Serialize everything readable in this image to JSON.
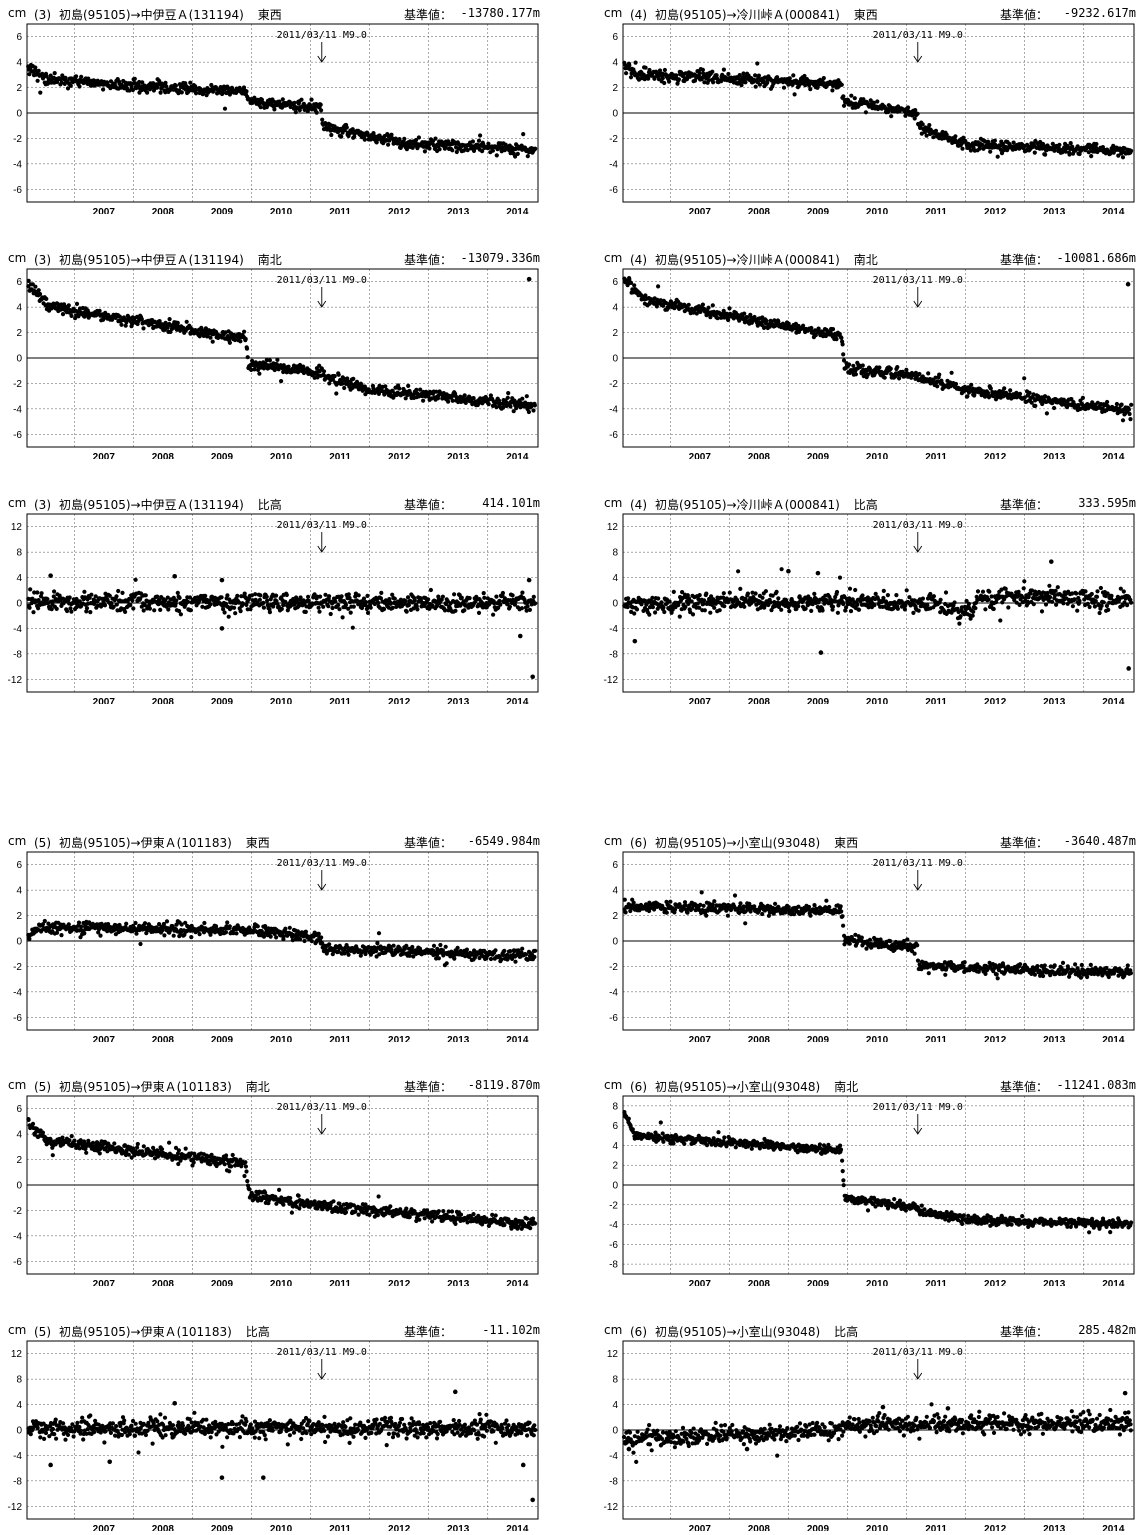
{
  "common": {
    "unit": "cm",
    "baseline_label": "基準値：",
    "event_label": "2011/03/11 M9.0",
    "event_x": 2011.19,
    "x_ticks": [
      "2007",
      "2008",
      "2009",
      "2010",
      "2011",
      "2012",
      "2013",
      "2014"
    ],
    "x_range": [
      2006.2,
      2014.85
    ]
  },
  "chart_data": [
    {
      "type": "scatter",
      "number": "(3)",
      "route": "初島(95105)→中伊豆Ａ(131194)",
      "component": "東西",
      "baseline": "-13780.177m",
      "y_ticks": [
        6,
        4,
        2,
        0,
        -2,
        -4,
        -6
      ],
      "ylim": [
        -7,
        7
      ],
      "trend": [
        [
          2006.22,
          3.7
        ],
        [
          2006.5,
          2.7
        ],
        [
          2008.0,
          2.1
        ],
        [
          2009.9,
          1.7
        ],
        [
          2009.95,
          0.9
        ],
        [
          2011.18,
          0.4
        ],
        [
          2011.2,
          -1.0
        ],
        [
          2012.0,
          -1.9
        ],
        [
          2012.5,
          -2.3
        ],
        [
          2014.8,
          -2.9
        ]
      ]
    },
    {
      "type": "scatter",
      "number": "(4)",
      "route": "初島(95105)→冷川峠Ａ(000841)",
      "component": "東西",
      "baseline": "-9232.617m",
      "y_ticks": [
        6,
        4,
        2,
        0,
        -2,
        -4,
        -6
      ],
      "ylim": [
        -7,
        7
      ],
      "trend": [
        [
          2006.22,
          3.8
        ],
        [
          2006.5,
          3.0
        ],
        [
          2008.5,
          2.6
        ],
        [
          2009.9,
          2.2
        ],
        [
          2009.95,
          1.0
        ],
        [
          2011.18,
          0.0
        ],
        [
          2011.2,
          -1.1
        ],
        [
          2012.0,
          -2.5
        ],
        [
          2014.8,
          -3.0
        ]
      ]
    },
    {
      "type": "scatter",
      "number": "(3)",
      "route": "初島(95105)→中伊豆Ａ(131194)",
      "component": "南北",
      "baseline": "-13079.336m",
      "y_ticks": [
        6,
        4,
        2,
        0,
        -2,
        -4,
        -6
      ],
      "ylim": [
        -7,
        7
      ],
      "trend": [
        [
          2006.22,
          5.8
        ],
        [
          2006.6,
          4.0
        ],
        [
          2009.9,
          1.5
        ],
        [
          2009.95,
          -0.5
        ],
        [
          2011.18,
          -1.2
        ],
        [
          2011.2,
          -1.3
        ],
        [
          2012.0,
          -2.5
        ],
        [
          2014.8,
          -3.8
        ]
      ],
      "outliers": [
        [
          2014.7,
          6.2
        ]
      ]
    },
    {
      "type": "scatter",
      "number": "(4)",
      "route": "初島(95105)→冷川峠Ａ(000841)",
      "component": "南北",
      "baseline": "-10081.686m",
      "y_ticks": [
        6,
        4,
        2,
        0,
        -2,
        -4,
        -6
      ],
      "ylim": [
        -7,
        7
      ],
      "trend": [
        [
          2006.22,
          6.2
        ],
        [
          2006.6,
          4.5
        ],
        [
          2009.9,
          1.7
        ],
        [
          2009.95,
          -0.8
        ],
        [
          2011.18,
          -1.4
        ],
        [
          2011.2,
          -1.6
        ],
        [
          2012.0,
          -2.5
        ],
        [
          2014.8,
          -4.2
        ]
      ],
      "outliers": [
        [
          2014.75,
          5.8
        ]
      ]
    },
    {
      "type": "scatter",
      "number": "(3)",
      "route": "初島(95105)→中伊豆Ａ(131194)",
      "component": "比高",
      "baseline": "414.101m",
      "y_ticks": [
        12,
        8,
        4,
        0,
        -4,
        -8,
        -12
      ],
      "ylim": [
        -14,
        14
      ],
      "trend": [
        [
          2006.22,
          0.2
        ],
        [
          2014.8,
          0.0
        ]
      ],
      "outliers": [
        [
          2006.6,
          4.3
        ],
        [
          2008.7,
          4.2
        ],
        [
          2009.5,
          3.6
        ],
        [
          2014.7,
          3.6
        ],
        [
          2014.76,
          -11.6
        ],
        [
          2009.5,
          -4.0
        ],
        [
          2014.55,
          -5.2
        ]
      ]
    },
    {
      "type": "scatter",
      "number": "(4)",
      "route": "初島(95105)→冷川峠Ａ(000841)",
      "component": "比高",
      "baseline": "333.595m",
      "y_ticks": [
        12,
        8,
        4,
        0,
        -4,
        -8,
        -12
      ],
      "ylim": [
        -14,
        14
      ],
      "trend": [
        [
          2006.22,
          -0.3
        ],
        [
          2008.5,
          0.3
        ],
        [
          2011.5,
          0.0
        ],
        [
          2011.9,
          -1.5
        ],
        [
          2012.1,
          -1.2
        ],
        [
          2012.2,
          1.0
        ],
        [
          2014.8,
          0.5
        ]
      ],
      "outliers": [
        [
          2009.0,
          5.0
        ],
        [
          2009.5,
          4.7
        ],
        [
          2013.45,
          6.5
        ],
        [
          2009.55,
          -7.8
        ],
        [
          2014.76,
          -10.3
        ],
        [
          2006.4,
          -6.0
        ]
      ]
    },
    {
      "type": "scatter",
      "number": "(5)",
      "route": "初島(95105)→伊東Ａ(101183)",
      "component": "東西",
      "baseline": "-6549.984m",
      "y_ticks": [
        6,
        4,
        2,
        0,
        -2,
        -4,
        -6
      ],
      "ylim": [
        -7,
        7
      ],
      "trend": [
        [
          2006.22,
          0.3
        ],
        [
          2006.4,
          1.1
        ],
        [
          2009.8,
          0.9
        ],
        [
          2011.18,
          0.3
        ],
        [
          2011.2,
          -0.6
        ],
        [
          2014.8,
          -1.2
        ]
      ]
    },
    {
      "type": "scatter",
      "number": "(6)",
      "route": "初島(95105)→小室山(93048)",
      "component": "東西",
      "baseline": "-3640.487m",
      "y_ticks": [
        6,
        4,
        2,
        0,
        -2,
        -4,
        -6
      ],
      "ylim": [
        -7,
        7
      ],
      "trend": [
        [
          2006.22,
          2.7
        ],
        [
          2009.9,
          2.4
        ],
        [
          2009.95,
          0.0
        ],
        [
          2011.18,
          -0.5
        ],
        [
          2011.2,
          -2.0
        ],
        [
          2014.8,
          -2.5
        ]
      ]
    },
    {
      "type": "scatter",
      "number": "(5)",
      "route": "初島(95105)→伊東Ａ(101183)",
      "component": "南北",
      "baseline": "-8119.870m",
      "y_ticks": [
        6,
        4,
        2,
        0,
        -2,
        -4,
        -6
      ],
      "ylim": [
        -7,
        7
      ],
      "trend": [
        [
          2006.22,
          5.0
        ],
        [
          2006.5,
          3.5
        ],
        [
          2009.9,
          1.7
        ],
        [
          2009.95,
          -0.8
        ],
        [
          2011.18,
          -1.6
        ],
        [
          2011.2,
          -1.7
        ],
        [
          2014.8,
          -3.1
        ]
      ]
    },
    {
      "type": "scatter",
      "number": "(6)",
      "route": "初島(95105)→小室山(93048)",
      "component": "南北",
      "baseline": "-11241.083m",
      "y_ticks": [
        8,
        6,
        4,
        2,
        0,
        -2,
        -4,
        -6,
        -8
      ],
      "ylim": [
        -9,
        9
      ],
      "trend": [
        [
          2006.22,
          7.5
        ],
        [
          2006.4,
          5.0
        ],
        [
          2009.9,
          3.5
        ],
        [
          2009.95,
          -1.3
        ],
        [
          2011.18,
          -2.3
        ],
        [
          2011.2,
          -2.6
        ],
        [
          2012.0,
          -3.5
        ],
        [
          2014.8,
          -4.0
        ]
      ]
    },
    {
      "type": "scatter",
      "number": "(5)",
      "route": "初島(95105)→伊東Ａ(101183)",
      "component": "比高",
      "baseline": "-11.102m",
      "y_ticks": [
        12,
        8,
        4,
        0,
        -4,
        -8,
        -12
      ],
      "ylim": [
        -14,
        14
      ],
      "trend": [
        [
          2006.22,
          0.3
        ],
        [
          2014.8,
          0.3
        ]
      ],
      "outliers": [
        [
          2008.7,
          4.2
        ],
        [
          2013.45,
          6.0
        ],
        [
          2014.76,
          -11.0
        ],
        [
          2009.5,
          -7.5
        ],
        [
          2010.2,
          -7.5
        ],
        [
          2006.6,
          -5.5
        ],
        [
          2007.6,
          -5.0
        ],
        [
          2014.6,
          -5.5
        ]
      ]
    },
    {
      "type": "scatter",
      "number": "(6)",
      "route": "初島(95105)→小室山(93048)",
      "component": "比高",
      "baseline": "285.482m",
      "y_ticks": [
        12,
        8,
        4,
        0,
        -4,
        -8,
        -12
      ],
      "ylim": [
        -14,
        14
      ],
      "trend": [
        [
          2006.22,
          -1.5
        ],
        [
          2009.9,
          0.0
        ],
        [
          2009.95,
          0.8
        ],
        [
          2014.8,
          1.2
        ]
      ],
      "outliers": [
        [
          2014.7,
          5.8
        ],
        [
          2010.6,
          3.6
        ],
        [
          2011.7,
          3.4
        ],
        [
          2006.3,
          -3.0
        ],
        [
          2008.3,
          -3.0
        ]
      ]
    }
  ]
}
